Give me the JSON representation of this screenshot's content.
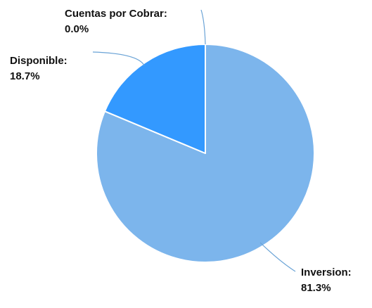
{
  "chart_data": {
    "type": "pie",
    "title": "",
    "slices": [
      {
        "label": "Inversion:",
        "value": 81.3,
        "value_label": "81.3%",
        "color": "#7cb5ec"
      },
      {
        "label": "Cuentas por Cobrar:",
        "value": 0.0,
        "value_label": "0.0%",
        "color": "#1f5f9e"
      },
      {
        "label": "Disponible:",
        "value": 18.7,
        "value_label": "18.7%",
        "color": "#3399ff"
      }
    ],
    "slice_border_color": "#ffffff",
    "connector_color": "#6aa3d6",
    "start_angle": "12 o'clock",
    "direction": "clockwise",
    "legend": "none",
    "labels": "outside, with connector lines"
  }
}
